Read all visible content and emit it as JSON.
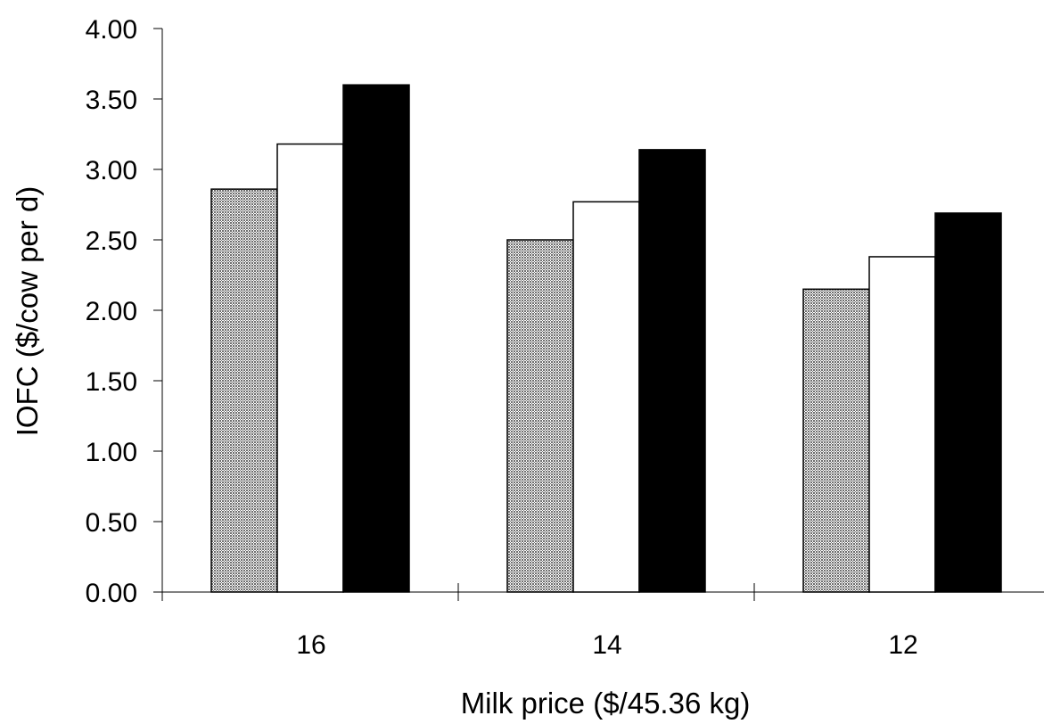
{
  "chart_data": {
    "type": "bar",
    "title": "",
    "xlabel": "Milk price ($/45.36 kg)",
    "ylabel": "IOFC ($/cow per d)",
    "categories": [
      "16",
      "14",
      "12"
    ],
    "ylim": [
      0,
      4
    ],
    "yticks": [
      "0.00",
      "0.50",
      "1.00",
      "1.50",
      "2.00",
      "2.50",
      "3.00",
      "3.50",
      "4.00"
    ],
    "legend": "none",
    "grid": false,
    "series": [
      {
        "values": [
          2.86,
          2.5,
          2.15
        ],
        "color": "#8c8c8c",
        "pattern": "stipple"
      },
      {
        "values": [
          3.18,
          2.77,
          2.38
        ],
        "color": "#ffffff",
        "pattern": "none"
      },
      {
        "values": [
          3.6,
          3.14,
          2.69
        ],
        "color": "#000000",
        "pattern": "none"
      }
    ]
  }
}
